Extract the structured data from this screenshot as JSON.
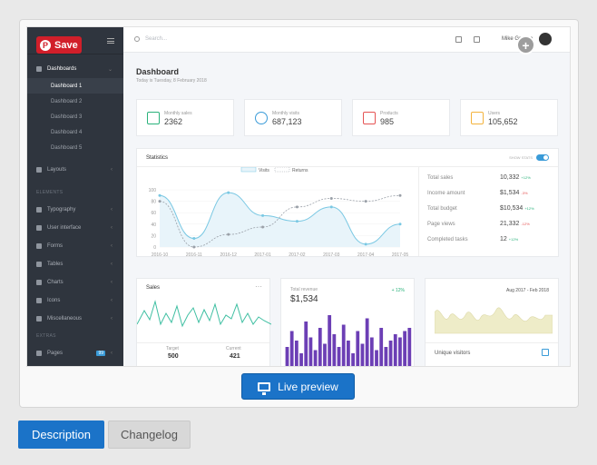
{
  "preview": {
    "pin_save": "Save",
    "sidebar": {
      "dashboards": "Dashboards",
      "dashboard_items": [
        "Dashboard 1",
        "Dashboard 2",
        "Dashboard 3",
        "Dashboard 4",
        "Dashboard 5"
      ],
      "layouts": "Layouts",
      "elements_heading": "ELEMENTS",
      "element_items": [
        "Typography",
        "User interface",
        "Forms",
        "Tables",
        "Charts",
        "Icons",
        "Miscellaneous"
      ],
      "extras_heading": "EXTRAS",
      "pages": "Pages",
      "pages_badge": "99"
    },
    "topbar": {
      "search_placeholder": "Search...",
      "user_name": "Mike Greene"
    },
    "dashboard": {
      "title": "Dashboard",
      "subtitle": "Today is Tuesday, 8 February 2018"
    },
    "stats": [
      {
        "label": "Monthly sales",
        "value": "2362",
        "icon": "cart-icon",
        "color": "#2ab27b"
      },
      {
        "label": "Monthly visits",
        "value": "687,123",
        "icon": "globe-icon",
        "color": "#3a9bd8"
      },
      {
        "label": "Products",
        "value": "985",
        "icon": "gift-icon",
        "color": "#e55353"
      },
      {
        "label": "Users",
        "value": "105,652",
        "icon": "users-icon",
        "color": "#f3b33d"
      }
    ],
    "statistics": {
      "title": "Statistics",
      "show_stats": "SHOW STATS",
      "legend": [
        "Visits",
        "Returns"
      ],
      "kv": [
        {
          "label": "Total sales",
          "value": "10,332",
          "delta": "+12%",
          "dir": "up"
        },
        {
          "label": "Income amount",
          "value": "$1,534",
          "delta": "-3%",
          "dir": "down"
        },
        {
          "label": "Total budget",
          "value": "$10,534",
          "delta": "+12%",
          "dir": "up"
        },
        {
          "label": "Page views",
          "value": "21,332",
          "delta": "-12%",
          "dir": "down"
        },
        {
          "label": "Completed tasks",
          "value": "12",
          "delta": "+12%",
          "dir": "up"
        }
      ]
    },
    "sales": {
      "title": "Sales",
      "target_label": "Target",
      "target_value": "500",
      "current_label": "Current",
      "current_value": "421"
    },
    "revenue": {
      "label": "Total revenue",
      "value": "$1,534",
      "delta": "+ 12%"
    },
    "visitors": {
      "range": "Aug 2017 - Feb 2018",
      "label": "Unique visitors"
    }
  },
  "chart_data": {
    "type": "line",
    "x": [
      "2016-10",
      "2016-11",
      "2016-12",
      "2017-01",
      "2017-02",
      "2017-03",
      "2017-04",
      "2017-05"
    ],
    "series": [
      {
        "name": "Visits",
        "values": [
          90,
          15,
          95,
          55,
          45,
          70,
          5,
          40
        ]
      },
      {
        "name": "Returns",
        "values": [
          80,
          0,
          22,
          35,
          70,
          85,
          80,
          90
        ]
      }
    ],
    "yticks": [
      0,
      20,
      40,
      60,
      80,
      100
    ],
    "ylim": [
      0,
      100
    ]
  },
  "colors": {
    "visits": "#7ac8e3",
    "returns": "#9aa0a8",
    "bars": "#6c3fb5",
    "area": "#eeecc8"
  },
  "live_preview": "Live preview",
  "tabs": [
    "Description",
    "Changelog"
  ]
}
